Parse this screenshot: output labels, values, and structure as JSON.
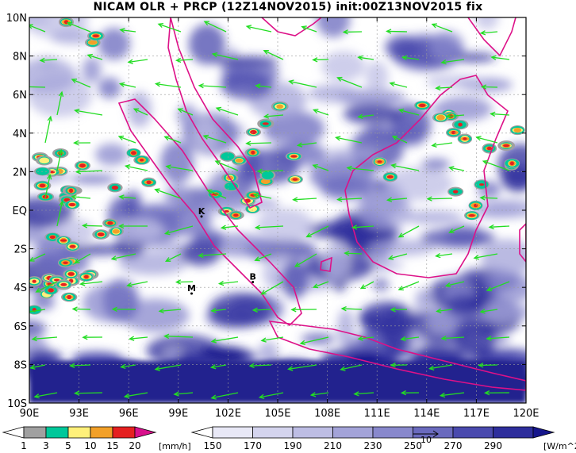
{
  "title": "NICAM OLR + PRCP (12Z14NOV2015) init:00Z13NOV2015 fix",
  "map": {
    "lon_labels": [
      "90E",
      "93E",
      "96E",
      "99E",
      "102E",
      "105E",
      "108E",
      "111E",
      "114E",
      "117E",
      "120E"
    ],
    "lat_labels": [
      "10N",
      "8N",
      "6N",
      "4N",
      "2N",
      "EQ",
      "2S",
      "4S",
      "6S",
      "8S",
      "10S"
    ],
    "markers": [
      {
        "label": "K",
        "lon": 100.4,
        "lat": -0.2
      },
      {
        "label": "M",
        "lon": 99.8,
        "lat": -4.2
      },
      {
        "label": "B",
        "lon": 103.5,
        "lat": -3.6
      }
    ],
    "vector_color": "#22dd22",
    "coast_color": "#dd1188",
    "grid_color": "#999999"
  },
  "precip_scale": {
    "levels": [
      "1",
      "3",
      "5",
      "10",
      "15",
      "20"
    ],
    "unit": "[mm/h]",
    "colors": [
      "#ffffff",
      "#a0a0a0",
      "#00c89a",
      "#fff07a",
      "#f2a028",
      "#e52020",
      "#d8108c"
    ]
  },
  "olr_scale": {
    "levels": [
      "150",
      "170",
      "190",
      "210",
      "230",
      "250",
      "270",
      "290"
    ],
    "unit": "[W/m^2]",
    "colors": [
      "#ffffff",
      "#e8e8f6",
      "#d4d4ee",
      "#bdbde4",
      "#a3a3d8",
      "#8888cc",
      "#6a6abe",
      "#4a4aae",
      "#2e2e9c",
      "#16168c"
    ],
    "vector_ref_label": "10"
  }
}
